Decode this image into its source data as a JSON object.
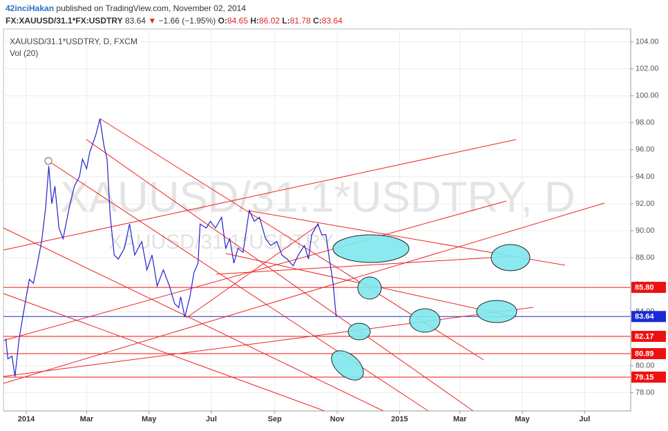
{
  "header": {
    "user": "42inciHakan",
    "published": "published on TradingView.com, November 02, 2014",
    "symbol": "FX:XAUUSD/31.1*FX:USDTRY",
    "price": "83.64",
    "arrow": "▼",
    "change": "−1.66 (−1.95%)",
    "o_label": "O:",
    "o": "84.65",
    "h_label": "H:",
    "h": "86.02",
    "l_label": "L:",
    "l": "81.78",
    "c_label": "C:",
    "c": "83.64"
  },
  "chart_data": {
    "type": "line",
    "legend": [
      "XAUUSD/31.1*USDTRY, D, FXCM",
      "Vol (20)"
    ],
    "watermark": "XAUUSD/31.1*USDTRY, D",
    "watermark2": "XAUUSD/31.1*USDTRY",
    "series": [
      {
        "name": "XAUUSD/31.1*USDTRY",
        "color": "#2222cc",
        "x": [
          -20,
          -18,
          -14,
          -11,
          -7,
          -3,
          0,
          3,
          7,
          11,
          15,
          19,
          22,
          25,
          28,
          32,
          36,
          42,
          47,
          52,
          55,
          59,
          62,
          68,
          72,
          76,
          79,
          82,
          86,
          90,
          96,
          101,
          106,
          113,
          118,
          123,
          128,
          134,
          140,
          145,
          149,
          151,
          155,
          160,
          164,
          168,
          170,
          176,
          180,
          185,
          191,
          195,
          199,
          203,
          207,
          212,
          218,
          223,
          228,
          234,
          239,
          245,
          250,
          255,
          261,
          266,
          272,
          276,
          279,
          285,
          289,
          293,
          297,
          300,
          303
        ],
        "values": [
          82.0,
          80.5,
          80.7,
          79.2,
          82.0,
          83.8,
          85.1,
          86.4,
          86.1,
          87.6,
          89.2,
          91.7,
          94.8,
          92.0,
          93.3,
          90.2,
          89.4,
          91.7,
          93.3,
          94.0,
          95.3,
          94.6,
          95.8,
          97.1,
          98.3,
          96.3,
          95.3,
          91.2,
          88.2,
          87.9,
          88.7,
          90.5,
          88.2,
          89.2,
          87.1,
          88.2,
          85.9,
          87.1,
          85.9,
          84.6,
          84.3,
          85.1,
          83.6,
          85.1,
          86.9,
          87.6,
          90.5,
          90.2,
          90.7,
          90.2,
          91.0,
          88.7,
          89.4,
          87.6,
          88.7,
          88.4,
          91.5,
          90.7,
          91.0,
          89.4,
          88.9,
          89.2,
          88.2,
          87.9,
          87.4,
          88.2,
          88.9,
          87.9,
          89.7,
          90.5,
          89.7,
          89.7,
          87.6,
          86.1,
          83.64
        ]
      }
    ],
    "xlim": [
      -22.3,
      591
    ],
    "xticks": [
      {
        "value": 0,
        "label": "2014"
      },
      {
        "value": 59,
        "label": "Mar"
      },
      {
        "value": 120,
        "label": "May"
      },
      {
        "value": 181,
        "label": "Jul"
      },
      {
        "value": 243,
        "label": "Sep"
      },
      {
        "value": 304,
        "label": "Nov"
      },
      {
        "value": 365,
        "label": "2015"
      },
      {
        "value": 424,
        "label": "Mar"
      },
      {
        "value": 485,
        "label": "May"
      },
      {
        "value": 546,
        "label": "Jul"
      }
    ],
    "ylim": [
      76.64,
      104.95
    ],
    "yticks": [
      {
        "value": 78,
        "label": "78.00"
      },
      {
        "value": 80,
        "label": "80.00"
      },
      {
        "value": 82,
        "label": "82.00"
      },
      {
        "value": 84,
        "label": "84.00"
      },
      {
        "value": 86,
        "label": "86.00"
      },
      {
        "value": 88,
        "label": "88.00"
      },
      {
        "value": 90,
        "label": "90.00"
      },
      {
        "value": 92,
        "label": "92.00"
      },
      {
        "value": 94,
        "label": "94.00"
      },
      {
        "value": 96,
        "label": "96.00"
      },
      {
        "value": 98,
        "label": "98.00"
      },
      {
        "value": 100,
        "label": "100.00"
      },
      {
        "value": 102,
        "label": "102.00"
      },
      {
        "value": 104,
        "label": "104.00"
      }
    ],
    "grid": true,
    "price_lines": [
      {
        "value": 85.8,
        "label": "85.80",
        "color": "#ee1111"
      },
      {
        "value": 83.64,
        "label": "83.64",
        "color": "#1a2bd6"
      },
      {
        "value": 82.17,
        "label": "82.17",
        "color": "#ee1111"
      },
      {
        "value": 80.89,
        "label": "80.89",
        "color": "#ee1111"
      },
      {
        "value": 79.15,
        "label": "79.15",
        "color": "#ee1111"
      }
    ]
  }
}
